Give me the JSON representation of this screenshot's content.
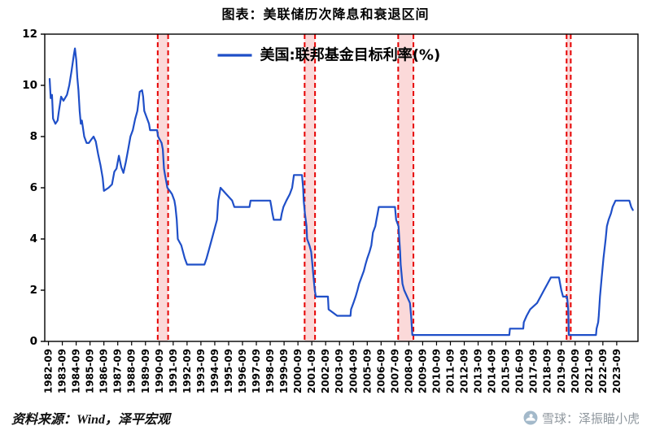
{
  "title": "图表：美联储历次降息和衰退区间",
  "footer": {
    "source": "资料来源：Wind，泽平宏观",
    "watermark": "雪球：泽振瞄小虎",
    "watermark_icon": "xueqiu-snowball-logo"
  },
  "chart_data": {
    "type": "line",
    "title": "图表：美联储历次降息和衰退区间",
    "legend": [
      "美国:联邦基金目标利率(%)"
    ],
    "legend_position": "top-center",
    "xlabel": "",
    "ylabel": "",
    "grid": false,
    "ylim": [
      0,
      12
    ],
    "yticks": [
      0,
      2,
      4,
      6,
      8,
      10,
      12
    ],
    "x_start": 1982.4,
    "x_end": 2025.2,
    "line_color": "#1f4fc8",
    "recession_color": "#e60000",
    "recession_fill": "rgba(244,160,160,0.40)",
    "xtick_labels": [
      "1982-09",
      "1983-09",
      "1984-09",
      "1985-09",
      "1986-09",
      "1987-09",
      "1988-09",
      "1989-09",
      "1990-09",
      "1991-09",
      "1992-09",
      "1993-09",
      "1994-09",
      "1995-09",
      "1996-09",
      "1997-09",
      "1998-09",
      "1999-09",
      "2000-09",
      "2001-09",
      "2002-09",
      "2003-09",
      "2004-09",
      "2005-09",
      "2006-09",
      "2007-09",
      "2008-09",
      "2009-09",
      "2010-09",
      "2011-09",
      "2012-09",
      "2013-09",
      "2014-09",
      "2015-09",
      "2016-09",
      "2017-09",
      "2018-09",
      "2019-09",
      "2020-09",
      "2021-09",
      "2022-09",
      "2023-09"
    ],
    "recession_bands": [
      [
        1990.55,
        1991.3
      ],
      [
        2001.15,
        2001.9
      ],
      [
        2007.9,
        2009.0
      ],
      [
        2020.05,
        2020.35
      ]
    ],
    "series": [
      {
        "name": "美国:联邦基金目标利率(%)",
        "points": [
          [
            1982.75,
            10.25
          ],
          [
            1982.83,
            9.5
          ],
          [
            1982.92,
            9.63
          ],
          [
            1983,
            8.7
          ],
          [
            1983.17,
            8.5
          ],
          [
            1983.33,
            8.63
          ],
          [
            1983.42,
            9.0
          ],
          [
            1983.58,
            9.56
          ],
          [
            1983.75,
            9.4
          ],
          [
            1984,
            9.63
          ],
          [
            1984.17,
            10.0
          ],
          [
            1984.33,
            10.56
          ],
          [
            1984.5,
            11.2
          ],
          [
            1984.58,
            11.44
          ],
          [
            1984.67,
            11.0
          ],
          [
            1984.75,
            10.31
          ],
          [
            1984.83,
            9.81
          ],
          [
            1984.92,
            9.0
          ],
          [
            1985,
            8.5
          ],
          [
            1985.08,
            8.63
          ],
          [
            1985.25,
            8.0
          ],
          [
            1985.42,
            7.75
          ],
          [
            1985.58,
            7.75
          ],
          [
            1985.75,
            7.88
          ],
          [
            1985.92,
            8.0
          ],
          [
            1986.08,
            7.81
          ],
          [
            1986.25,
            7.31
          ],
          [
            1986.42,
            6.88
          ],
          [
            1986.58,
            6.38
          ],
          [
            1986.67,
            5.88
          ],
          [
            1987,
            6.0
          ],
          [
            1987.25,
            6.13
          ],
          [
            1987.42,
            6.63
          ],
          [
            1987.58,
            6.75
          ],
          [
            1987.75,
            7.25
          ],
          [
            1987.92,
            6.81
          ],
          [
            1988.08,
            6.58
          ],
          [
            1988.25,
            7.0
          ],
          [
            1988.42,
            7.5
          ],
          [
            1988.58,
            8.0
          ],
          [
            1988.75,
            8.25
          ],
          [
            1988.92,
            8.69
          ],
          [
            1989.08,
            9.0
          ],
          [
            1989.25,
            9.75
          ],
          [
            1989.42,
            9.81
          ],
          [
            1989.5,
            9.56
          ],
          [
            1989.58,
            9.0
          ],
          [
            1989.75,
            8.75
          ],
          [
            1989.92,
            8.5
          ],
          [
            1990,
            8.25
          ],
          [
            1990.5,
            8.25
          ],
          [
            1990.58,
            8.0
          ],
          [
            1990.83,
            7.75
          ],
          [
            1990.92,
            7.5
          ],
          [
            1991,
            6.75
          ],
          [
            1991.08,
            6.5
          ],
          [
            1991.25,
            6.0
          ],
          [
            1991.42,
            5.88
          ],
          [
            1991.58,
            5.75
          ],
          [
            1991.75,
            5.5
          ],
          [
            1991.83,
            5.25
          ],
          [
            1991.92,
            4.75
          ],
          [
            1992,
            4.0
          ],
          [
            1992.25,
            3.75
          ],
          [
            1992.5,
            3.25
          ],
          [
            1992.67,
            3.0
          ],
          [
            1993.92,
            3.0
          ],
          [
            1994.08,
            3.25
          ],
          [
            1994.33,
            3.75
          ],
          [
            1994.58,
            4.25
          ],
          [
            1994.83,
            4.75
          ],
          [
            1994.92,
            5.5
          ],
          [
            1995.08,
            6.0
          ],
          [
            1995.5,
            5.75
          ],
          [
            1995.92,
            5.5
          ],
          [
            1996.08,
            5.25
          ],
          [
            1997.17,
            5.25
          ],
          [
            1997.25,
            5.5
          ],
          [
            1998.67,
            5.5
          ],
          [
            1998.75,
            5.25
          ],
          [
            1998.83,
            5.0
          ],
          [
            1998.92,
            4.75
          ],
          [
            1999.42,
            4.75
          ],
          [
            1999.5,
            5.0
          ],
          [
            1999.62,
            5.25
          ],
          [
            1999.83,
            5.5
          ],
          [
            2000.08,
            5.75
          ],
          [
            2000.25,
            6.0
          ],
          [
            2000.38,
            6.5
          ],
          [
            2000.96,
            6.5
          ],
          [
            2001.04,
            6.0
          ],
          [
            2001.08,
            5.5
          ],
          [
            2001.17,
            5.0
          ],
          [
            2001.29,
            4.5
          ],
          [
            2001.33,
            4.0
          ],
          [
            2001.5,
            3.75
          ],
          [
            2001.62,
            3.5
          ],
          [
            2001.71,
            3.0
          ],
          [
            2001.79,
            2.5
          ],
          [
            2001.88,
            2.0
          ],
          [
            2001.96,
            1.75
          ],
          [
            2002.83,
            1.75
          ],
          [
            2002.88,
            1.25
          ],
          [
            2003.5,
            1.0
          ],
          [
            2004.46,
            1.0
          ],
          [
            2004.5,
            1.25
          ],
          [
            2004.67,
            1.5
          ],
          [
            2004.83,
            1.75
          ],
          [
            2004.96,
            2.0
          ],
          [
            2005.08,
            2.25
          ],
          [
            2005.25,
            2.5
          ],
          [
            2005.42,
            2.75
          ],
          [
            2005.54,
            3.0
          ],
          [
            2005.67,
            3.25
          ],
          [
            2005.83,
            3.5
          ],
          [
            2005.96,
            3.75
          ],
          [
            2006.08,
            4.25
          ],
          [
            2006.25,
            4.5
          ],
          [
            2006.33,
            4.75
          ],
          [
            2006.42,
            5.0
          ],
          [
            2006.5,
            5.25
          ],
          [
            2007.67,
            5.25
          ],
          [
            2007.75,
            4.75
          ],
          [
            2007.92,
            4.5
          ],
          [
            2008.04,
            3.5
          ],
          [
            2008.08,
            3.0
          ],
          [
            2008.21,
            2.25
          ],
          [
            2008.33,
            2.0
          ],
          [
            2008.75,
            1.5
          ],
          [
            2008.83,
            1.0
          ],
          [
            2008.92,
            0.25
          ],
          [
            2015.92,
            0.25
          ],
          [
            2015.96,
            0.5
          ],
          [
            2016.92,
            0.5
          ],
          [
            2016.96,
            0.75
          ],
          [
            2017.17,
            1.0
          ],
          [
            2017.42,
            1.25
          ],
          [
            2017.92,
            1.5
          ],
          [
            2018.17,
            1.75
          ],
          [
            2018.42,
            2.0
          ],
          [
            2018.67,
            2.25
          ],
          [
            2018.92,
            2.5
          ],
          [
            2019.5,
            2.5
          ],
          [
            2019.58,
            2.25
          ],
          [
            2019.67,
            2.0
          ],
          [
            2019.79,
            1.75
          ],
          [
            2020.08,
            1.75
          ],
          [
            2020.17,
            1.25
          ],
          [
            2020.21,
            0.25
          ],
          [
            2022.17,
            0.25
          ],
          [
            2022.21,
            0.5
          ],
          [
            2022.33,
            0.75
          ],
          [
            2022.37,
            1.0
          ],
          [
            2022.46,
            1.75
          ],
          [
            2022.58,
            2.5
          ],
          [
            2022.71,
            3.25
          ],
          [
            2022.87,
            4.0
          ],
          [
            2022.96,
            4.5
          ],
          [
            2023.08,
            4.75
          ],
          [
            2023.25,
            5.0
          ],
          [
            2023.37,
            5.25
          ],
          [
            2023.58,
            5.5
          ],
          [
            2024.58,
            5.5
          ],
          [
            2024.71,
            5.25
          ],
          [
            2024.83,
            5.13
          ]
        ]
      }
    ]
  }
}
